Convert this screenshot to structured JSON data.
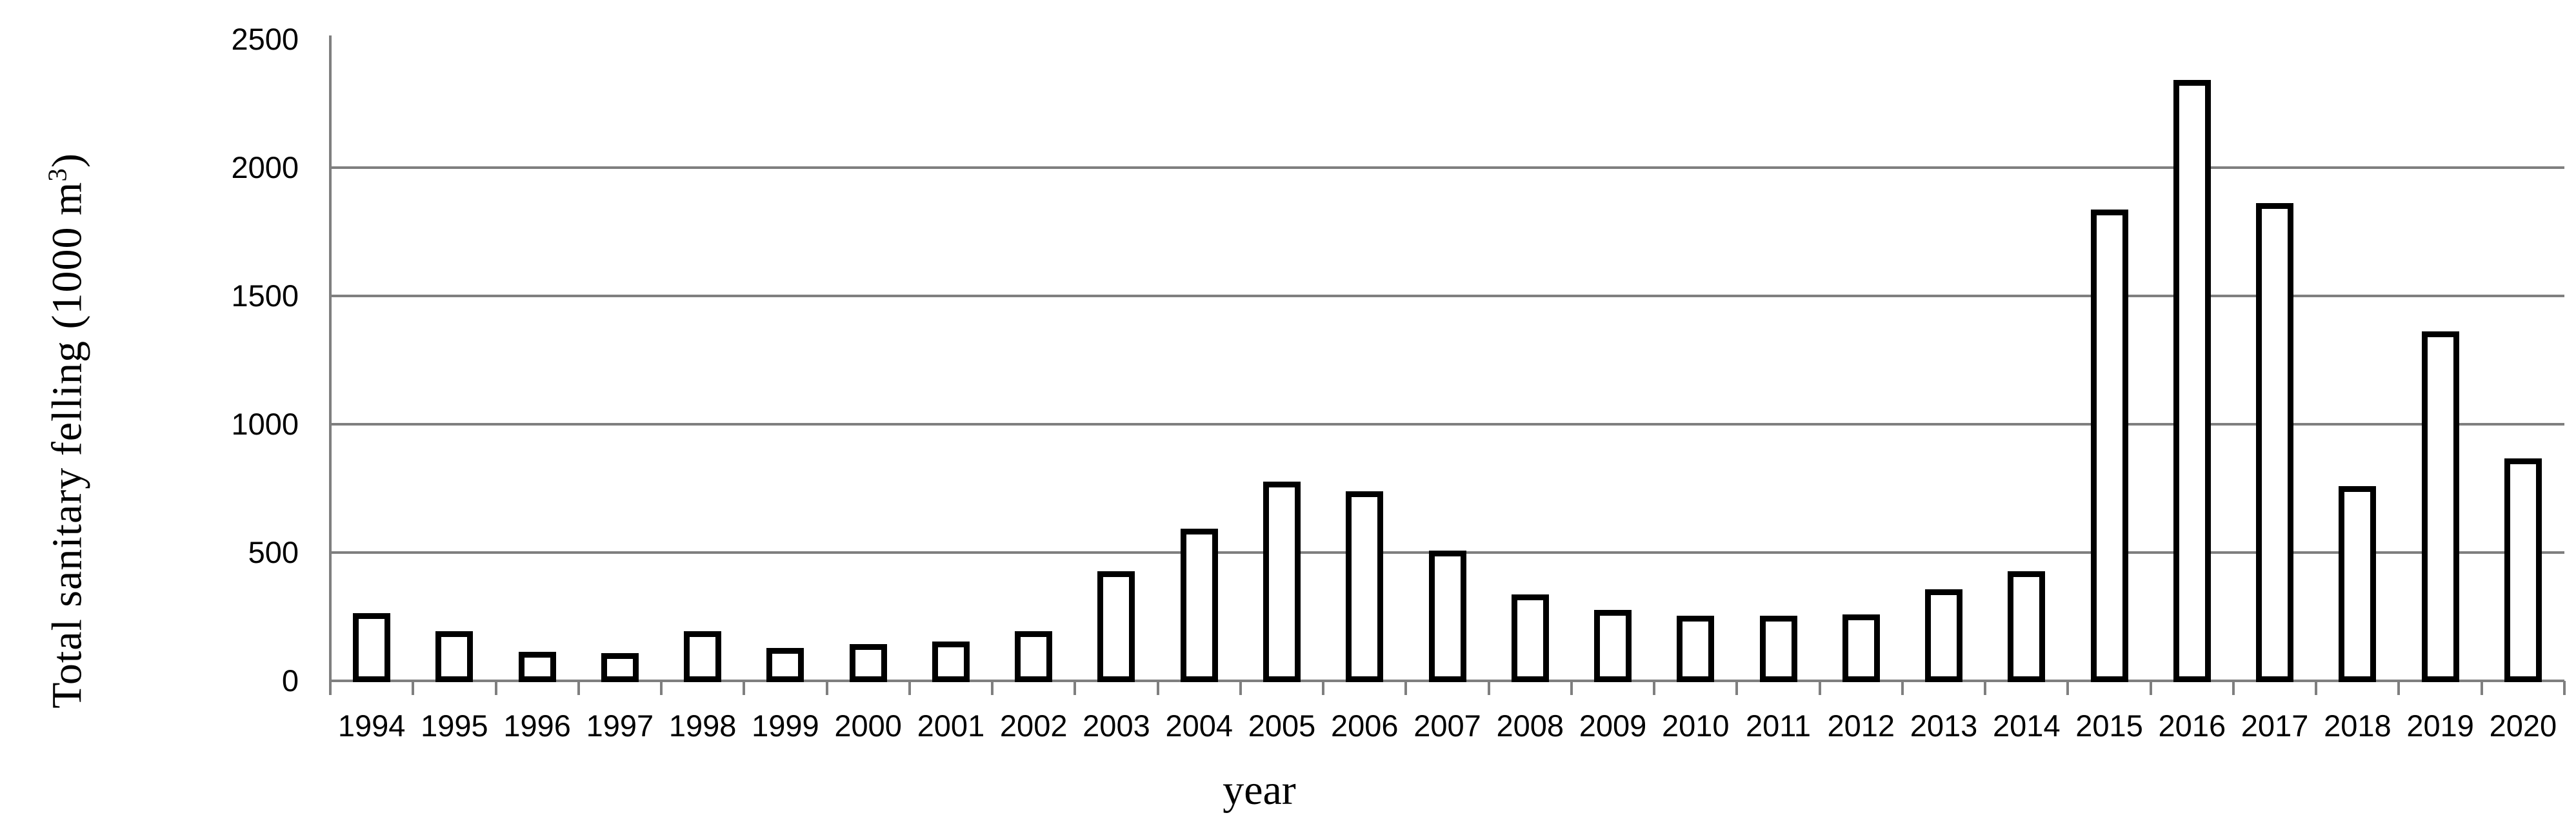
{
  "figure": {
    "x_axis_title": "year",
    "y_axis_title_prefix": "Total sanitary felling  (1000 m",
    "y_axis_title_sup": "3",
    "y_axis_title_suffix": ")"
  },
  "chart_data": {
    "type": "bar",
    "title": "",
    "xlabel": "year",
    "ylabel": "Total sanitary felling (1000 m³)",
    "categories": [
      "1994",
      "1995",
      "1996",
      "1997",
      "1998",
      "1999",
      "2000",
      "2001",
      "2002",
      "2003",
      "2004",
      "2005",
      "2006",
      "2007",
      "2008",
      "2009",
      "2010",
      "2011",
      "2012",
      "2013",
      "2014",
      "2015",
      "2016",
      "2017",
      "2018",
      "2019",
      "2020"
    ],
    "values": [
      245,
      175,
      95,
      90,
      175,
      110,
      125,
      135,
      175,
      410,
      575,
      760,
      720,
      490,
      320,
      260,
      235,
      235,
      240,
      340,
      410,
      1820,
      2325,
      1845,
      740,
      1345,
      850
    ],
    "ylim": [
      0,
      2500
    ],
    "yticks": [
      0,
      500,
      1000,
      1500,
      2000,
      2500
    ],
    "gridline_values": [
      500,
      1000,
      1500,
      2000
    ],
    "grid": "horizontal-only",
    "legend": "none",
    "bar_fill_color": "#ffffff",
    "bar_border_color": "#000000",
    "axis_color": "#7f7f7f",
    "text_color": "#000000"
  }
}
